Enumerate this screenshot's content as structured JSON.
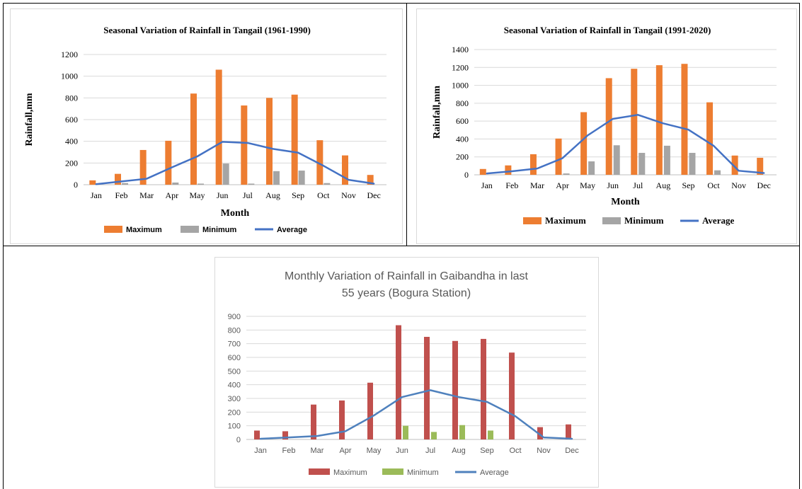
{
  "colors": {
    "maximum_orange": "#ed7d31",
    "minimum_gray": "#a5a5a5",
    "average_blue": "#4472c4",
    "maximum_red": "#c0504d",
    "minimum_green": "#9bbb59",
    "average_blue2": "#4f81bd",
    "grid": "#d9d9d9"
  },
  "chart_data": [
    {
      "type": "bar",
      "title": "Seasonal Variation of Rainfall in Tangail (1961-1990)",
      "xlabel": "Month",
      "ylabel": "Rainfall,mm",
      "ylim": [
        0,
        1200
      ],
      "yticks": [
        "0",
        "200",
        "400",
        "600",
        "800",
        "1000",
        "1200"
      ],
      "categories": [
        "Jan",
        "Feb",
        "Mar",
        "Apr",
        "May",
        "Jun",
        "Jul",
        "Aug",
        "Sep",
        "Oct",
        "Nov",
        "Dec"
      ],
      "legend_position": "bottom",
      "grid": true,
      "series": [
        {
          "name": "Maximum",
          "kind": "bar",
          "color": "#ed7d31",
          "values": [
            40,
            100,
            320,
            405,
            840,
            1060,
            730,
            800,
            830,
            410,
            270,
            90
          ]
        },
        {
          "name": "Minimum",
          "kind": "bar",
          "color": "#a5a5a5",
          "values": [
            0,
            15,
            0,
            20,
            10,
            195,
            10,
            125,
            130,
            15,
            0,
            0
          ]
        },
        {
          "name": "Average",
          "kind": "line",
          "color": "#4472c4",
          "values": [
            5,
            30,
            55,
            160,
            260,
            395,
            385,
            330,
            295,
            175,
            45,
            10
          ]
        }
      ]
    },
    {
      "type": "bar",
      "title": "Seasonal Variation of Rainfall in Tangail (1991-2020)",
      "xlabel": "Month",
      "ylabel": "Rainfall,mm",
      "ylim": [
        0,
        1400
      ],
      "yticks": [
        "0",
        "200",
        "400",
        "600",
        "800",
        "1000",
        "1200",
        "1400"
      ],
      "categories": [
        "Jan",
        "Feb",
        "Mar",
        "Apr",
        "May",
        "Jun",
        "Jul",
        "Aug",
        "Sep",
        "Oct",
        "Nov",
        "Dec"
      ],
      "legend_position": "bottom",
      "grid": true,
      "series": [
        {
          "name": "Maximum",
          "kind": "bar",
          "color": "#ed7d31",
          "values": [
            65,
            105,
            230,
            405,
            700,
            1080,
            1185,
            1225,
            1240,
            810,
            215,
            190
          ]
        },
        {
          "name": "Minimum",
          "kind": "bar",
          "color": "#a5a5a5",
          "values": [
            0,
            0,
            0,
            15,
            150,
            330,
            245,
            325,
            245,
            50,
            0,
            0
          ]
        },
        {
          "name": "Average",
          "kind": "line",
          "color": "#4472c4",
          "values": [
            15,
            40,
            70,
            185,
            440,
            625,
            670,
            575,
            505,
            325,
            45,
            20
          ]
        }
      ]
    },
    {
      "type": "bar",
      "title": "Monthly Variation of Rainfall in Gaibandha in last 55 years (Bogura Station)",
      "title_lines": [
        "Monthly Variation of Rainfall in Gaibandha in last",
        "55 years (Bogura Station)"
      ],
      "xlabel": "",
      "ylabel": "",
      "ylim": [
        0,
        900
      ],
      "yticks": [
        "0",
        "100",
        "200",
        "300",
        "400",
        "500",
        "600",
        "700",
        "800",
        "900"
      ],
      "categories": [
        "Jan",
        "Feb",
        "Mar",
        "Apr",
        "May",
        "Jun",
        "Jul",
        "Aug",
        "Sep",
        "Oct",
        "Nov",
        "Dec"
      ],
      "legend_position": "bottom",
      "grid": true,
      "series": [
        {
          "name": "Maximum",
          "kind": "bar",
          "color": "#c0504d",
          "values": [
            65,
            60,
            255,
            285,
            415,
            835,
            750,
            720,
            735,
            635,
            90,
            110
          ]
        },
        {
          "name": "Minimum",
          "kind": "bar",
          "color": "#9bbb59",
          "values": [
            0,
            0,
            0,
            0,
            0,
            100,
            55,
            105,
            65,
            0,
            0,
            0
          ]
        },
        {
          "name": "Average",
          "kind": "line",
          "color": "#4f81bd",
          "values": [
            5,
            15,
            25,
            60,
            175,
            310,
            360,
            310,
            275,
            170,
            15,
            5
          ]
        }
      ]
    }
  ]
}
